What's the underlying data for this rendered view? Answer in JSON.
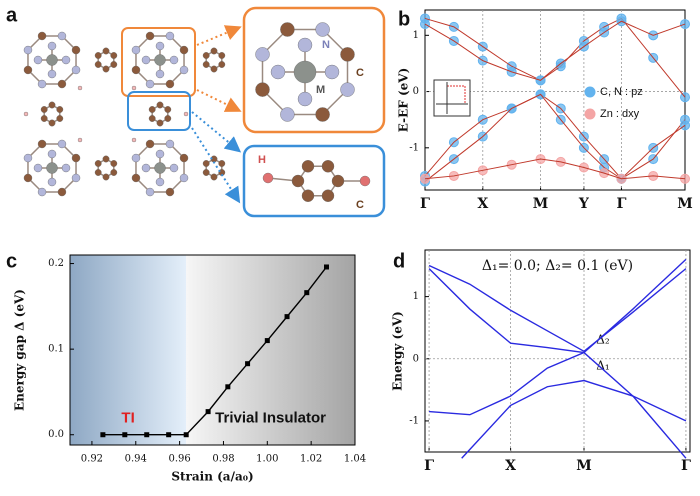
{
  "diagram": {
    "label": "a",
    "atoms": {
      "N": "N",
      "M": "M",
      "C1": "C",
      "H": "H",
      "C2": "C"
    }
  },
  "chart_data": [
    {
      "type": "line",
      "label": "b",
      "ylabel": "E-EF (eV)",
      "x": [
        0,
        0.5,
        1,
        1.5,
        2,
        2.35,
        2.75,
        3.1,
        3.4,
        3.95,
        4.5
      ],
      "xlim": [
        0,
        4.5
      ],
      "ylim": [
        -1.75,
        1.45
      ],
      "xticks": [
        {
          "value": 0,
          "label": "Γ"
        },
        {
          "value": 1,
          "label": "X"
        },
        {
          "value": 2,
          "label": "M"
        },
        {
          "value": 2.75,
          "label": "Y"
        },
        {
          "value": 3.4,
          "label": "Γ"
        },
        {
          "value": 4.5,
          "label": "M"
        }
      ],
      "yticks": [
        -1,
        0,
        1
      ],
      "grid_x": true,
      "zero_line": true,
      "legend": [
        {
          "label": "C, N : pz",
          "color": "#63b3ee"
        },
        {
          "label": "Zn : dxy",
          "color": "#f4a5a5"
        }
      ],
      "series": [
        {
          "color": "#63b3ee",
          "line_color": "#c0392b",
          "marker": "circle",
          "values": [
            1.3,
            1.15,
            0.8,
            0.45,
            0.2,
            0.45,
            0.9,
            1.15,
            1.3,
            0.6,
            -0.1
          ]
        },
        {
          "color": "#63b3ee",
          "line_color": "#c0392b",
          "marker": "circle",
          "values": [
            1.2,
            0.9,
            0.55,
            0.35,
            0.2,
            0.5,
            0.8,
            1.05,
            1.25,
            1.0,
            1.2
          ]
        },
        {
          "color": "#63b3ee",
          "line_color": "#c0392b",
          "marker": "circle",
          "values": [
            -1.5,
            -0.9,
            -0.5,
            -0.3,
            -0.05,
            -0.3,
            -0.8,
            -1.2,
            -1.55,
            -1.2,
            -0.5
          ]
        },
        {
          "color": "#63b3ee",
          "line_color": "#c0392b",
          "marker": "circle",
          "values": [
            -1.6,
            -1.2,
            -0.8,
            -0.3,
            -0.05,
            -0.5,
            -1.0,
            -1.35,
            -1.55,
            -1.0,
            -0.6
          ]
        },
        {
          "color": "#f4a5a5",
          "line_color": "#c0392b",
          "marker": "circle",
          "values": [
            -1.55,
            -1.5,
            -1.4,
            -1.3,
            -1.2,
            -1.25,
            -1.35,
            -1.45,
            -1.55,
            -1.5,
            -1.55
          ]
        }
      ]
    },
    {
      "type": "line",
      "label": "c",
      "ylabel": "Energy gap Δ (eV)",
      "xlabel": "Strain (a/a₀)",
      "xlim": [
        0.91,
        1.04
      ],
      "ylim": [
        -0.012,
        0.21
      ],
      "xticks": [
        0.92,
        0.94,
        0.96,
        0.98,
        {
          "value": 1,
          "label": "1.00"
        },
        1.02,
        1.04
      ],
      "yticks": [
        {
          "value": 0,
          "label": "0.0"
        },
        0.1,
        0.2
      ],
      "regions": [
        {
          "label": "TI",
          "xlim": [
            0.91,
            0.963
          ]
        },
        {
          "label": "Trivial Insulator",
          "xlim": [
            0.963,
            1.04
          ]
        }
      ],
      "series": [
        {
          "color": "#000000",
          "line_color": "#000000",
          "marker": "square",
          "x": [
            0.925,
            0.935,
            0.945,
            0.955,
            0.963,
            0.973,
            0.982,
            0.991,
            1.0,
            1.009,
            1.018,
            1.027
          ],
          "values": [
            0,
            0,
            0,
            0,
            0,
            0.027,
            0.056,
            0.083,
            0.11,
            0.138,
            0.166,
            0.196
          ]
        }
      ]
    },
    {
      "type": "line",
      "label": "d",
      "ylabel": "Energy (eV)",
      "annotation": "Δ₁= 0.0;  Δ₂= 0.1 (eV)",
      "point_labels": [
        {
          "label": "Δ₂",
          "x": 2.05,
          "y": 0.3
        },
        {
          "label": "Δ₁",
          "x": 2.05,
          "y": -0.12
        }
      ],
      "xlim": [
        -0.05,
        3.2
      ],
      "ylim": [
        -1.5,
        1.75
      ],
      "xticks": [
        {
          "value": 0,
          "label": "Γ"
        },
        {
          "value": 1,
          "label": "X"
        },
        {
          "value": 1.9,
          "label": "M"
        },
        {
          "value": 3.15,
          "label": "Γ"
        }
      ],
      "yticks": [
        -1,
        0,
        1
      ],
      "grid_x": true,
      "zero_line": true,
      "series": [
        {
          "line_color": "#2a2ae0",
          "x": [
            0,
            0.5,
            1,
            1.45,
            1.9,
            2.5,
            3.15
          ],
          "values": [
            1.5,
            1.2,
            0.78,
            0.45,
            0.12,
            0.75,
            1.45
          ]
        },
        {
          "line_color": "#2a2ae0",
          "x": [
            0,
            0.5,
            1,
            1.45,
            1.9,
            2.5,
            3.15
          ],
          "values": [
            1.45,
            0.8,
            0.25,
            0.18,
            0.1,
            -0.6,
            -1.6
          ]
        },
        {
          "line_color": "#2a2ae0",
          "x": [
            0.4,
            1,
            1.45,
            1.9,
            2.5,
            3.15
          ],
          "values": [
            -1.6,
            -0.75,
            -0.45,
            -0.35,
            -0.6,
            -1.0
          ]
        },
        {
          "line_color": "#2a2ae0",
          "x": [
            0,
            0.5,
            1,
            1.45,
            1.9,
            2.5,
            3.15
          ],
          "values": [
            -0.85,
            -0.9,
            -0.6,
            -0.15,
            0.1,
            0.8,
            1.6
          ]
        }
      ]
    }
  ]
}
